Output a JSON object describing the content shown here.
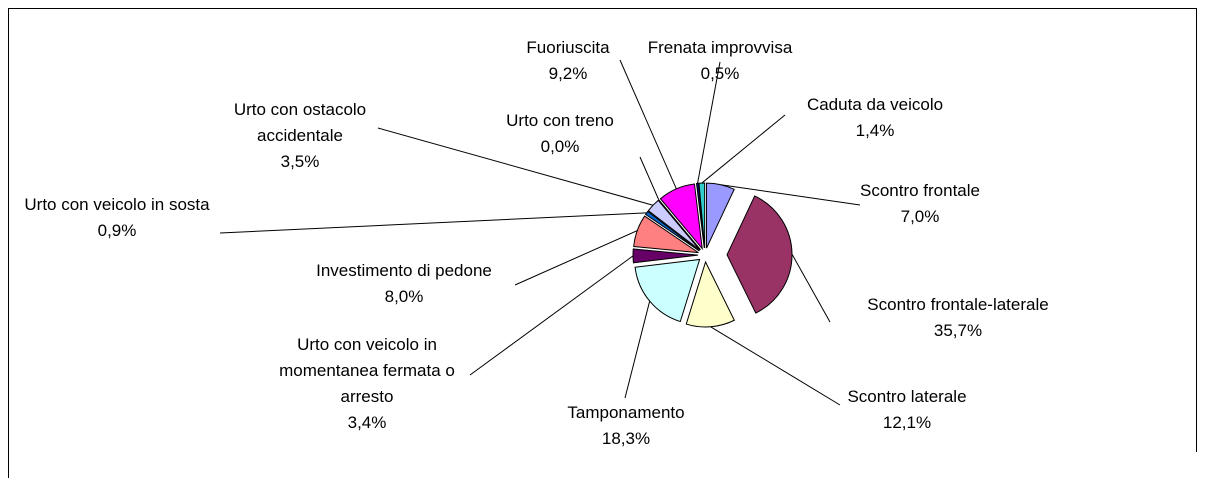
{
  "chart_data": {
    "type": "pie",
    "categories": [
      "Scontro frontale",
      "Scontro frontale-laterale",
      "Scontro laterale",
      "Tamponamento",
      "Urto con veicolo in momentanea fermata o arresto",
      "Investimento di pedone",
      "Urto con veicolo in sosta",
      "Urto con ostacolo accidentale",
      "Urto con treno",
      "Fuoriuscita",
      "Frenata improvvisa",
      "Caduta da veicolo"
    ],
    "values": [
      7.0,
      35.7,
      12.1,
      18.3,
      3.4,
      8.0,
      0.9,
      3.5,
      0.0,
      9.2,
      0.5,
      1.4
    ],
    "value_labels": [
      "7,0%",
      "35,7%",
      "12,1%",
      "18,3%",
      "3,4%",
      "8,0%",
      "0,9%",
      "3,5%",
      "0,0%",
      "9,2%",
      "0,5%",
      "1,4%"
    ],
    "colors": [
      "#9999ff",
      "#993366",
      "#ffffcc",
      "#ccffff",
      "#660066",
      "#ff8080",
      "#0066cc",
      "#ccccff",
      "#000080",
      "#ff00ff",
      "#000080",
      "#33cccc"
    ]
  }
}
